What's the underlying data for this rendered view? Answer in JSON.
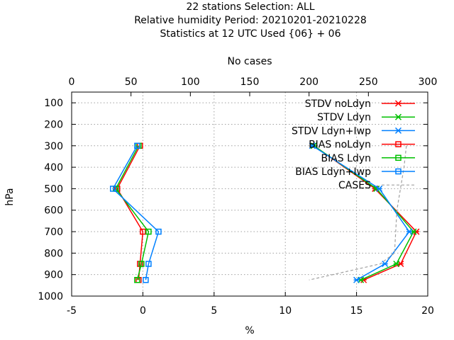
{
  "chart_data": {
    "type": "line",
    "title_lines": [
      "22 stations Selection: ALL",
      "Relative humidity  Period: 20210201-20210228",
      "Statistics at 12 UTC  Used {06} + 06"
    ],
    "xlabel": "%",
    "ylabel": "hPa",
    "x2label": "No cases",
    "xlim": [
      -5,
      20
    ],
    "x2lim": [
      0,
      300
    ],
    "ylim": [
      1000,
      50
    ],
    "x_ticks": [
      -5,
      0,
      5,
      10,
      15,
      20
    ],
    "x2_ticks": [
      0,
      50,
      100,
      150,
      200,
      250,
      300
    ],
    "y_ticks": [
      100,
      200,
      300,
      400,
      500,
      600,
      700,
      800,
      900,
      1000
    ],
    "grid": true,
    "legend_position": "top-right",
    "series": [
      {
        "name": "STDV noLdyn",
        "color": "#ff0000",
        "marker": "x",
        "axis": "x",
        "points": [
          [
            12,
            300
          ],
          [
            16.3,
            500
          ],
          [
            19.2,
            700
          ],
          [
            18.1,
            850
          ],
          [
            15.5,
            925
          ]
        ]
      },
      {
        "name": "STDV Ldyn",
        "color": "#00c000",
        "marker": "x",
        "axis": "x",
        "points": [
          [
            12,
            300
          ],
          [
            16.4,
            500
          ],
          [
            19.0,
            700
          ],
          [
            17.8,
            850
          ],
          [
            15.3,
            925
          ]
        ]
      },
      {
        "name": "STDV Ldyn+Iwp",
        "color": "#0080ff",
        "marker": "x",
        "axis": "x",
        "points": [
          [
            11.9,
            300
          ],
          [
            16.6,
            500
          ],
          [
            18.7,
            700
          ],
          [
            17.0,
            850
          ],
          [
            15.0,
            925
          ]
        ]
      },
      {
        "name": "BIAS noLdyn",
        "color": "#ff0000",
        "marker": "square",
        "axis": "x",
        "points": [
          [
            -0.2,
            300
          ],
          [
            -1.8,
            500
          ],
          [
            0.0,
            700
          ],
          [
            -0.2,
            850
          ],
          [
            -0.3,
            925
          ]
        ]
      },
      {
        "name": "BIAS Ldyn",
        "color": "#00c000",
        "marker": "square",
        "axis": "x",
        "points": [
          [
            -0.3,
            300
          ],
          [
            -1.9,
            500
          ],
          [
            0.4,
            700
          ],
          [
            -0.1,
            850
          ],
          [
            -0.4,
            925
          ]
        ]
      },
      {
        "name": "BIAS Ldyn+Iwp",
        "color": "#0080ff",
        "marker": "square",
        "axis": "x",
        "points": [
          [
            -0.4,
            300
          ],
          [
            -2.1,
            500
          ],
          [
            1.1,
            700
          ],
          [
            0.4,
            850
          ],
          [
            0.2,
            925
          ]
        ]
      },
      {
        "name": "CASES",
        "color": "#a0a0a0",
        "marker": "none",
        "dashed": true,
        "axis": "x2",
        "points": [
          [
            282,
            300
          ],
          [
            280,
            400
          ],
          [
            277,
            500
          ],
          [
            274,
            600
          ],
          [
            273,
            700
          ],
          [
            272,
            800
          ],
          [
            260,
            850
          ],
          [
            240,
            875
          ],
          [
            200,
            925
          ]
        ]
      }
    ]
  }
}
